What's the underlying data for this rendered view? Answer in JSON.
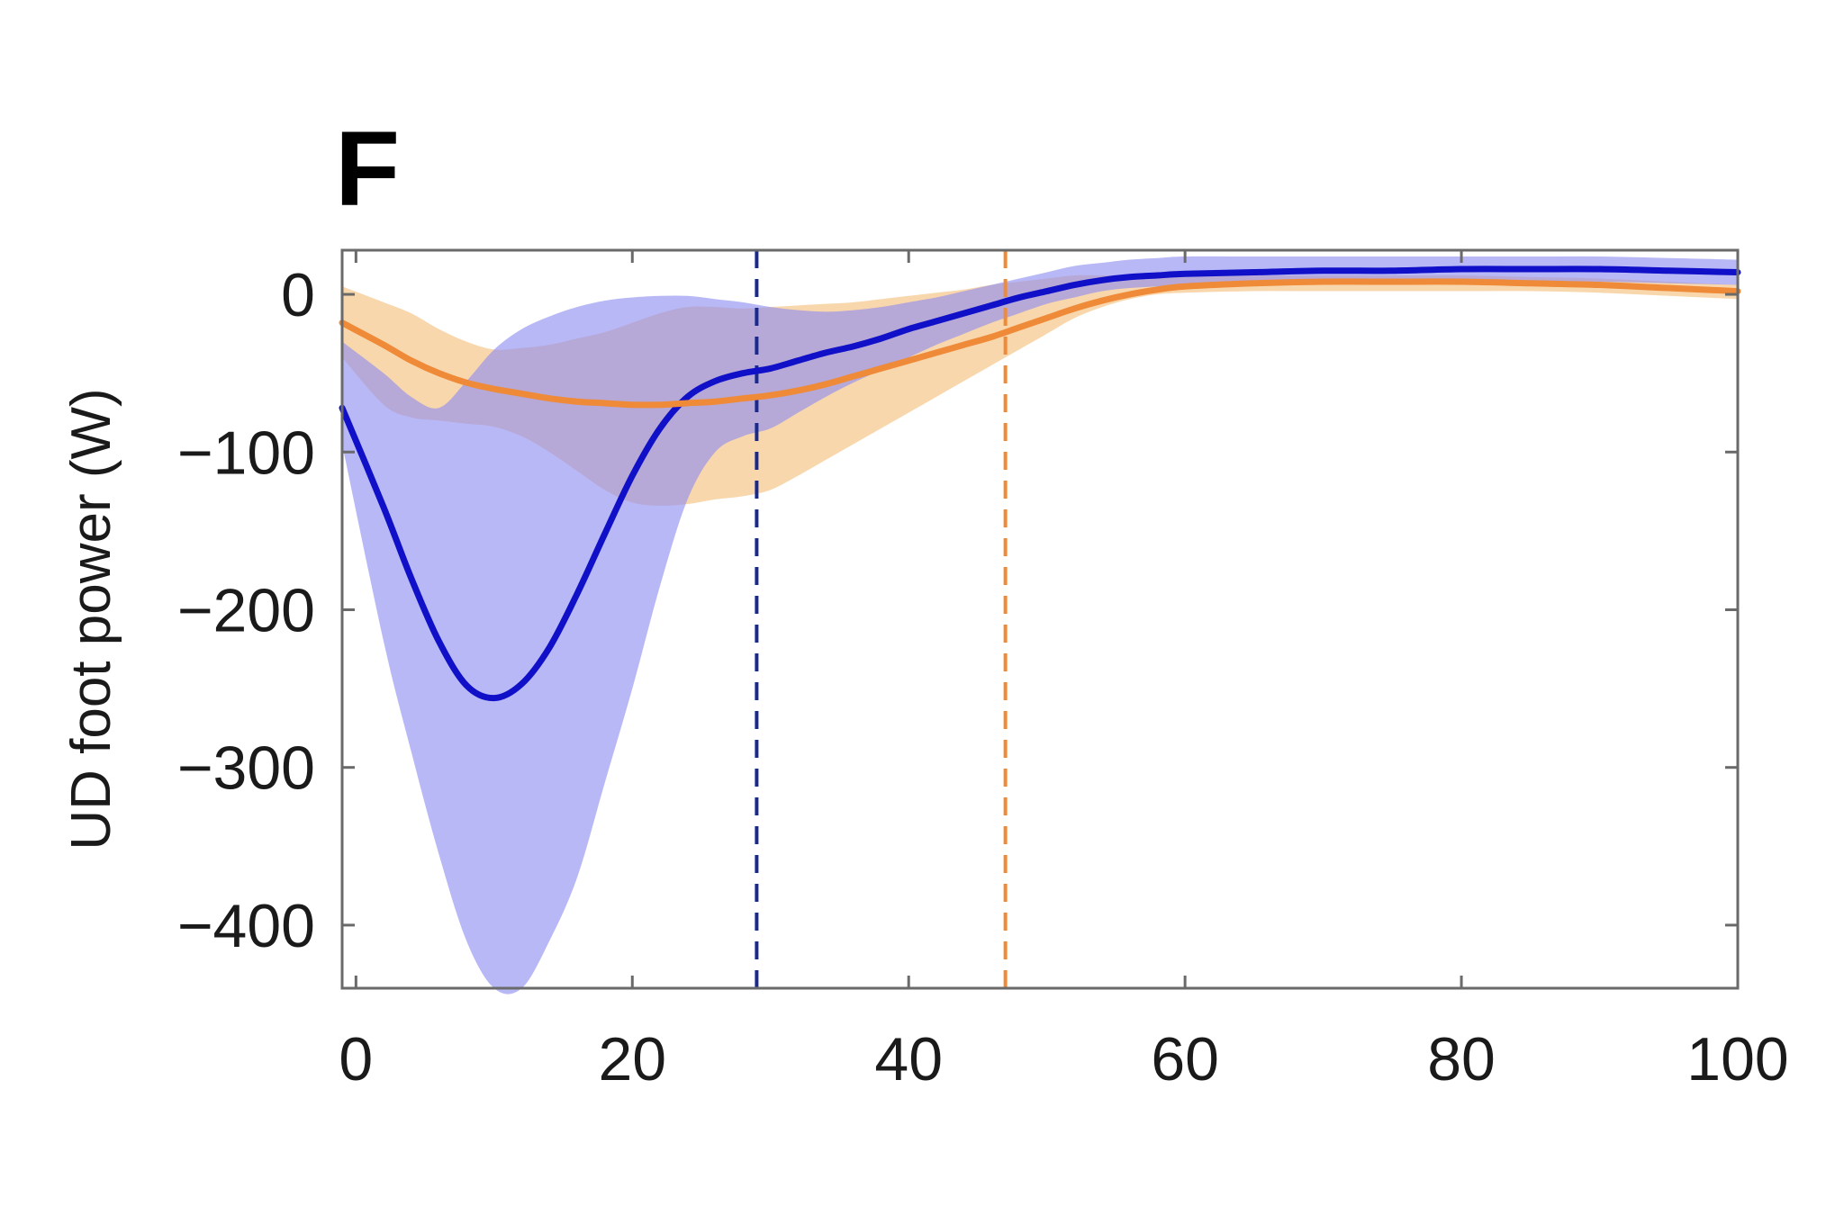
{
  "panel_label": "F",
  "chart_data": {
    "type": "line",
    "title": "",
    "xlabel": "",
    "ylabel": "UD foot power (W)",
    "xlim": [
      -1,
      100
    ],
    "ylim": [
      -440,
      28
    ],
    "xticks": [
      0,
      20,
      40,
      60,
      80,
      100
    ],
    "yticks": [
      0,
      -100,
      -200,
      -300,
      -400
    ],
    "tick_labels_x": [
      "0",
      "20",
      "40",
      "60",
      "80",
      "100"
    ],
    "tick_labels_y": [
      "0",
      "−100",
      "−200",
      "−300",
      "−400"
    ],
    "grid": false,
    "legend": "none",
    "x": [
      -1,
      2,
      4,
      6,
      8,
      10,
      12,
      14,
      16,
      18,
      20,
      22,
      24,
      26,
      28,
      30,
      32,
      34,
      36,
      38,
      40,
      42,
      44,
      46,
      48,
      50,
      52,
      54,
      56,
      58,
      60,
      65,
      70,
      75,
      80,
      85,
      90,
      95,
      100
    ],
    "series": [
      {
        "color": "#1010c8",
        "band_color": "#8c8cf0",
        "mean": [
          -72,
          -135,
          -180,
          -220,
          -248,
          -256,
          -247,
          -224,
          -190,
          -152,
          -115,
          -85,
          -65,
          -55,
          -50,
          -47,
          -42,
          -37,
          -33,
          -28,
          -22,
          -17,
          -12,
          -7,
          -2,
          2,
          6,
          9,
          11,
          12,
          13,
          14,
          15,
          15,
          16,
          16,
          16,
          15,
          14
        ],
        "upper": [
          -30,
          -50,
          -65,
          -72,
          -55,
          -35,
          -22,
          -14,
          -8,
          -4,
          -2,
          -1,
          -1,
          -3,
          -5,
          -8,
          -10,
          -11,
          -10,
          -8,
          -5,
          -2,
          2,
          6,
          10,
          14,
          18,
          20,
          22,
          23,
          24,
          24,
          24,
          24,
          24,
          24,
          24,
          23,
          22
        ],
        "lower": [
          -95,
          -220,
          -290,
          -355,
          -410,
          -440,
          -440,
          -410,
          -370,
          -310,
          -250,
          -185,
          -130,
          -100,
          -90,
          -85,
          -75,
          -65,
          -56,
          -48,
          -40,
          -32,
          -25,
          -18,
          -12,
          -6,
          -2,
          2,
          4,
          5,
          6,
          7,
          8,
          8,
          8,
          8,
          8,
          7,
          6
        ]
      },
      {
        "color": "#ee8a38",
        "band_color": "#f7c88e",
        "mean": [
          -18,
          -32,
          -42,
          -50,
          -56,
          -60,
          -63,
          -66,
          -68,
          -69,
          -70,
          -70,
          -69,
          -68,
          -66,
          -64,
          -61,
          -57,
          -52,
          -47,
          -42,
          -37,
          -32,
          -27,
          -21,
          -15,
          -9,
          -4,
          0,
          3,
          5,
          7,
          8,
          8,
          8,
          7,
          6,
          4,
          2
        ],
        "upper": [
          5,
          -5,
          -12,
          -22,
          -30,
          -35,
          -34,
          -32,
          -28,
          -24,
          -18,
          -12,
          -8,
          -8,
          -9,
          -8,
          -7,
          -6,
          -5,
          -3,
          -1,
          1,
          3,
          6,
          8,
          10,
          12,
          12,
          12,
          12,
          12,
          12,
          12,
          12,
          12,
          11,
          10,
          8,
          6
        ],
        "lower": [
          -40,
          -70,
          -78,
          -80,
          -82,
          -84,
          -90,
          -100,
          -112,
          -124,
          -132,
          -134,
          -133,
          -130,
          -128,
          -124,
          -115,
          -105,
          -95,
          -85,
          -75,
          -65,
          -55,
          -45,
          -35,
          -25,
          -15,
          -8,
          -3,
          0,
          1,
          2,
          2,
          2,
          2,
          2,
          1,
          -1,
          -3
        ]
      }
    ],
    "vertical_lines": [
      {
        "x": 29,
        "color": "#1a2a8c",
        "style": "dashed"
      },
      {
        "x": 47,
        "color": "#ee8a38",
        "style": "dashed"
      }
    ]
  }
}
